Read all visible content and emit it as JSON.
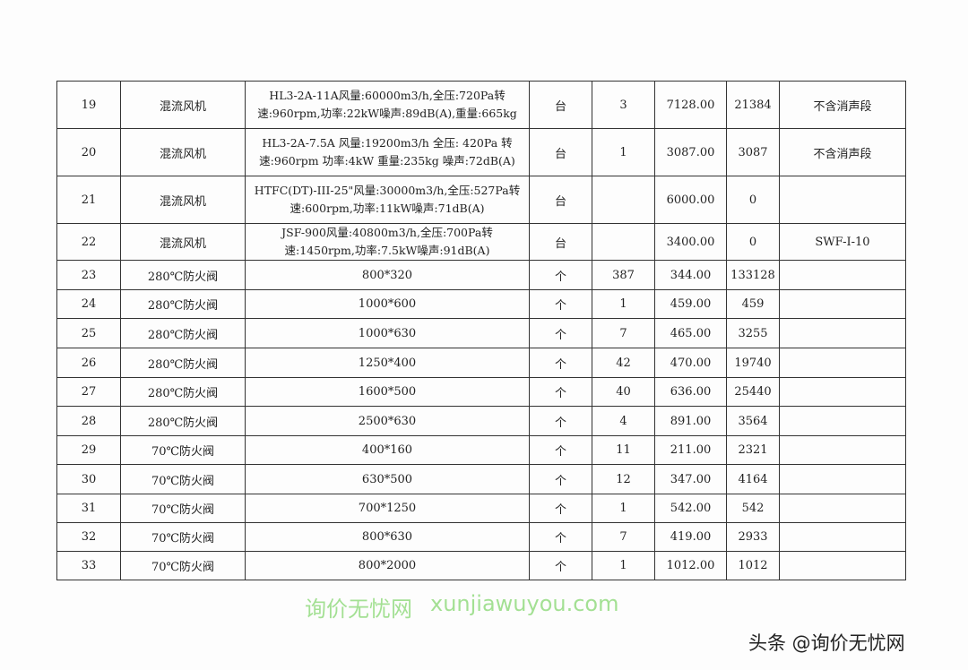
{
  "rows": [
    {
      "no": "19",
      "name": "混流风机",
      "spec": "HL3-2A-11A风量:60000m3/h,全压:720Pa转速:960rpm,功率:22kW噪声:89dB(A),重量:665kg",
      "unit": "台",
      "qty": "3",
      "price": "7128.00",
      "total": "21384",
      "note": "不含消声段"
    },
    {
      "no": "20",
      "name": "混流风机",
      "spec": "HL3-2A-7.5A 风量:19200m3/h 全压: 420Pa 转速:960rpm 功率:4kW 重量:235kg 噪声:72dB(A)",
      "unit": "台",
      "qty": "1",
      "price": "3087.00",
      "total": "3087",
      "note": "不含消声段"
    },
    {
      "no": "21",
      "name": "混流风机",
      "spec": "HTFC(DT)-III-25\"风量:30000m3/h,全压:527Pa转速:600rpm,功率:11kW噪声:71dB(A)",
      "unit": "台",
      "qty": "",
      "price": "6000.00",
      "total": "0",
      "note": ""
    },
    {
      "no": "22",
      "name": "混流风机",
      "spec": "JSF-900风量:40800m3/h,全压:700Pa转速:1450rpm,功率:7.5kW噪声:91dB(A)",
      "unit": "台",
      "qty": "",
      "price": "3400.00",
      "total": "0",
      "note": "SWF-I-10"
    },
    {
      "no": "23",
      "name": "280℃防火阀",
      "spec": "800*320",
      "unit": "个",
      "qty": "387",
      "price": "344.00",
      "total": "133128",
      "note": ""
    },
    {
      "no": "24",
      "name": "280℃防火阀",
      "spec": "1000*600",
      "unit": "个",
      "qty": "1",
      "price": "459.00",
      "total": "459",
      "note": ""
    },
    {
      "no": "25",
      "name": "280℃防火阀",
      "spec": "1000*630",
      "unit": "个",
      "qty": "7",
      "price": "465.00",
      "total": "3255",
      "note": ""
    },
    {
      "no": "26",
      "name": "280℃防火阀",
      "spec": "1250*400",
      "unit": "个",
      "qty": "42",
      "price": "470.00",
      "total": "19740",
      "note": ""
    },
    {
      "no": "27",
      "name": "280℃防火阀",
      "spec": "1600*500",
      "unit": "个",
      "qty": "40",
      "price": "636.00",
      "total": "25440",
      "note": ""
    },
    {
      "no": "28",
      "name": "280℃防火阀",
      "spec": "2500*630",
      "unit": "个",
      "qty": "4",
      "price": "891.00",
      "total": "3564",
      "note": ""
    },
    {
      "no": "29",
      "name": "70℃防火阀",
      "spec": "400*160",
      "unit": "个",
      "qty": "11",
      "price": "211.00",
      "total": "2321",
      "note": ""
    },
    {
      "no": "30",
      "name": "70℃防火阀",
      "spec": "630*500",
      "unit": "个",
      "qty": "12",
      "price": "347.00",
      "total": "4164",
      "note": ""
    },
    {
      "no": "31",
      "name": "70℃防火阀",
      "spec": "700*1250",
      "unit": "个",
      "qty": "1",
      "price": "542.00",
      "total": "542",
      "note": ""
    },
    {
      "no": "32",
      "name": "70℃防火阀",
      "spec": "800*630",
      "unit": "个",
      "qty": "7",
      "price": "419.00",
      "total": "2933",
      "note": ""
    },
    {
      "no": "33",
      "name": "70℃防火阀",
      "spec": "800*2000",
      "unit": "个",
      "qty": "1",
      "price": "1012.00",
      "total": "1012",
      "note": ""
    }
  ],
  "watermark": {
    "cn": "询价无忧网",
    "en": "xunjiawuyou.com",
    "color": "#5ac83c"
  },
  "footer": "头条 @询价无忧网"
}
